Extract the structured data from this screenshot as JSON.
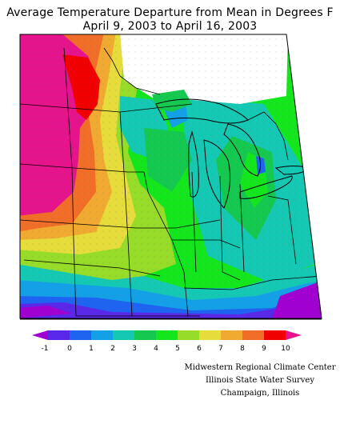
{
  "title": {
    "line1": "Average Temperature Departure from Mean in Degrees F",
    "line2": "April 9, 2003 to April 16, 2003"
  },
  "legend": {
    "labels": [
      "-1",
      "0",
      "1",
      "2",
      "3",
      "4",
      "5",
      "6",
      "7",
      "8",
      "9",
      "10"
    ],
    "colors": [
      "#a000d0",
      "#5a28e8",
      "#1e64f0",
      "#14a0e6",
      "#14c8b4",
      "#14c850",
      "#14e61e",
      "#96dc28",
      "#e6dc3c",
      "#f0aa32",
      "#f06e28",
      "#f00000",
      "#e6148c"
    ]
  },
  "credits": {
    "line1": "Midwestern Regional Climate Center",
    "line2": "Illinois State Water Survey",
    "line3": "Champaign, Illinois"
  }
}
